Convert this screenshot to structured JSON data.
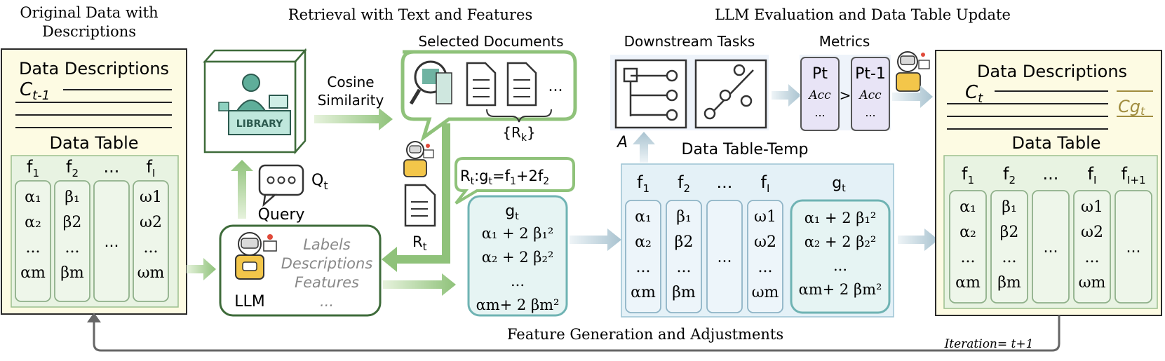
{
  "sections": {
    "original_title_line1": "Original Data with",
    "original_title_line2": "Descriptions",
    "retrieval_title": "Retrieval with Text and Features",
    "evaluation_title": "LLM Evaluation and Data Table Update",
    "feature_generation_title": "Feature Generation and Adjustments"
  },
  "left_panel": {
    "heading": "Data Descriptions",
    "context_label": "C",
    "context_sub": "t-1",
    "table_heading": "Data Table",
    "columns": [
      {
        "head": "f",
        "sub": "1",
        "items": [
          "α₁",
          "α₂",
          "...",
          "αm"
        ]
      },
      {
        "head": "f",
        "sub": "2",
        "items": [
          "β₁",
          "β2",
          "...",
          "βm"
        ]
      },
      {
        "head": "...",
        "sub": "",
        "items": [
          "..."
        ]
      },
      {
        "head": "f",
        "sub": "I",
        "items": [
          "ω1",
          "ω2",
          "...",
          "ωm"
        ]
      }
    ]
  },
  "retrieval": {
    "library_label": "LIBRARY",
    "cosine_line1": "Cosine",
    "cosine_line2": "Similarity",
    "selected_docs_title": "Selected Documents",
    "docs_ellipsis": "...",
    "rk_label": "{R",
    "rk_sub": "k",
    "rk_close": "}",
    "query_icon_label": "Q",
    "query_icon_sub": "t",
    "query_label": "Query",
    "rt_label": "R",
    "rt_sub": "t"
  },
  "llm_box": {
    "llm_label": "LLM",
    "lines": [
      "Labels",
      "Descriptions",
      "Features",
      "..."
    ]
  },
  "formula": {
    "speech": "R",
    "speech_sub": "t",
    "speech_rest": ":g",
    "speech_sub2": "t",
    "speech_eq": "=f",
    "speech_sub3": "1",
    "speech_plus": "+2f",
    "speech_sub4": "2",
    "g_head": "g",
    "g_sub": "t",
    "rows": [
      "α₁ + 2 β₁²",
      "α₂ + 2 β₂²",
      "...",
      "αm+ 2 βm²"
    ]
  },
  "temp_table": {
    "title": "Data Table-Temp",
    "columns": [
      {
        "head": "f",
        "sub": "1",
        "items": [
          "α₁",
          "α₂",
          "...",
          "αm"
        ]
      },
      {
        "head": "f",
        "sub": "2",
        "items": [
          "β₁",
          "β2",
          "...",
          "βm"
        ]
      },
      {
        "head": "...",
        "sub": "",
        "items": [
          "..."
        ]
      },
      {
        "head": "f",
        "sub": "I",
        "items": [
          "ω1",
          "ω2",
          "...",
          "ωm"
        ]
      }
    ],
    "g_head": "g",
    "g_sub": "t",
    "g_rows": [
      "α₁ + 2 β₁²",
      "α₂ + 2 β₂²",
      "...",
      "αm+ 2 βm²"
    ]
  },
  "evaluation": {
    "downstream_title": "Downstream Tasks",
    "task_label": "A",
    "metrics_title": "Metrics",
    "metric_a_head": "Pt",
    "metric_a_acc": "Acc",
    "metric_a_more": "...",
    "compare": ">",
    "metric_b_head": "Pt-1",
    "metric_b_acc": "Acc",
    "metric_b_more": "..."
  },
  "right_panel": {
    "heading": "Data Descriptions",
    "context_label": "C",
    "context_sub": "t",
    "new_context_label": "Cg",
    "new_context_sub": "t",
    "table_heading": "Data Table",
    "columns": [
      {
        "head": "f",
        "sub": "1",
        "items": [
          "α₁",
          "α₂",
          "...",
          "αm"
        ]
      },
      {
        "head": "f",
        "sub": "2",
        "items": [
          "β₁",
          "β2",
          "...",
          "βm"
        ]
      },
      {
        "head": "...",
        "sub": "",
        "items": [
          "..."
        ]
      },
      {
        "head": "f",
        "sub": "I",
        "items": [
          "ω1",
          "ω2",
          "...",
          "ωm"
        ]
      },
      {
        "head": "f",
        "sub": "I+1",
        "items": [
          "..."
        ]
      }
    ]
  },
  "iteration_label": "Iteration= t+1",
  "colors": {
    "panel_fill": "#fdfbe3",
    "table_fill": "#e8f3e2",
    "green_dark": "#3e6b3a",
    "teal": "#6fb3b3",
    "blue_fill": "#e4f1f7",
    "purple_fill": "#e8e4f6",
    "arrow_green": "#8fc27a",
    "arrow_blue": "#b9cfd9"
  }
}
